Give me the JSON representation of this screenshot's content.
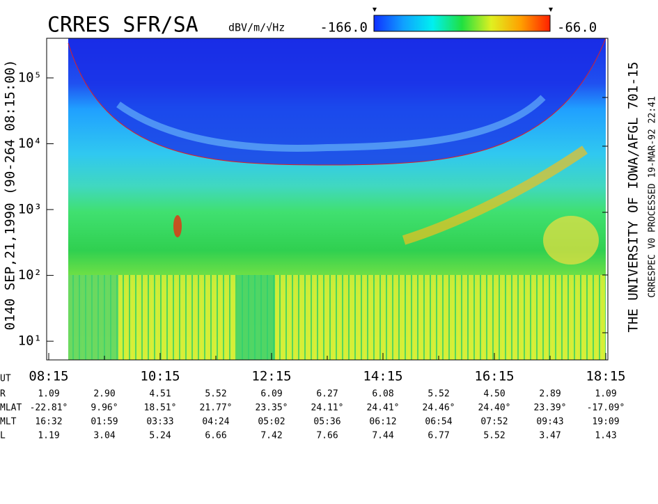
{
  "chart_data": {
    "type": "spectrogram",
    "title": "CRRES SFR/SA",
    "y_label": "0140  SEP,21,1990  (90-264 08:15:00)",
    "x_label": "UT",
    "categories": [
      "08:15",
      "10:15",
      "12:15",
      "14:15",
      "16:15",
      "18:15"
    ],
    "ylim": [
      5.2,
      400000
    ],
    "log_y": true,
    "yticks": [
      {
        "value": 10,
        "label": "10¹"
      },
      {
        "value": 100,
        "label": "10²"
      },
      {
        "value": 1000,
        "label": "10³"
      },
      {
        "value": 10000,
        "label": "10⁴"
      },
      {
        "value": 100000,
        "label": "10⁵"
      }
    ],
    "colorbar": {
      "label": "dBV/m/√Hz",
      "min": {
        "value": -166,
        "label": "-166.0"
      },
      "max": {
        "value": -66,
        "label": "-66.0"
      },
      "colors": [
        "#1030ff",
        "#10a0ff",
        "#00f0f0",
        "#20e040",
        "#e0f020",
        "#ffa000",
        "#ff2000"
      ]
    },
    "credits": [
      "THE UNIVERSITY OF IOWA/AFGL 701-15",
      "CRRESPEC V0     PROCESSED 19-MAR-92  22:41"
    ]
  },
  "ephemeris": {
    "rows": [
      {
        "label": "R",
        "values": [
          "1.09",
          "2.90",
          "4.51",
          "5.52",
          "6.09",
          "6.27",
          "6.08",
          "5.52",
          "4.50",
          "2.89",
          "1.09"
        ]
      },
      {
        "label": "MLAT",
        "values": [
          "-22.81°",
          "9.96°",
          "18.51°",
          "21.77°",
          "23.35°",
          "24.11°",
          "24.41°",
          "24.46°",
          "24.40°",
          "23.39°",
          "-17.09°"
        ]
      },
      {
        "label": "MLT",
        "values": [
          "16:32",
          "01:59",
          "03:33",
          "04:24",
          "05:02",
          "05:36",
          "06:12",
          "06:54",
          "07:52",
          "09:43",
          "19:09"
        ]
      },
      {
        "label": "L",
        "values": [
          "1.19",
          "3.04",
          "5.24",
          "6.66",
          "7.42",
          "7.66",
          "7.44",
          "6.77",
          "5.52",
          "3.47",
          "1.43"
        ]
      }
    ]
  }
}
